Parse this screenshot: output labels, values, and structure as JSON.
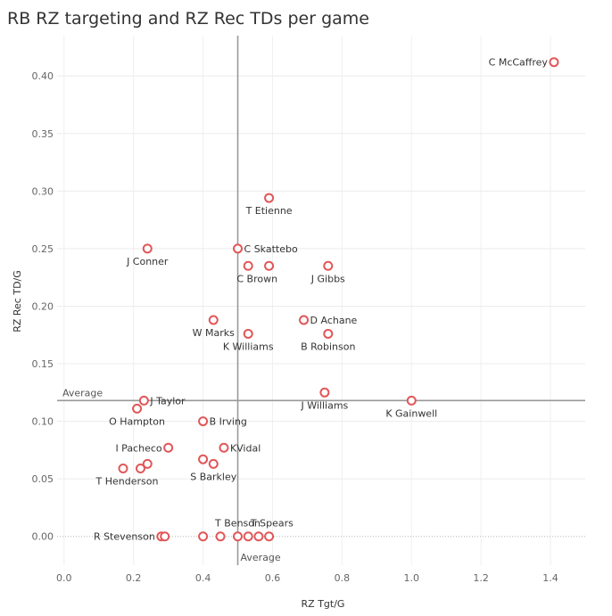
{
  "chart_data": {
    "type": "scatter",
    "title": "RB RZ targeting and  RZ Rec TDs per game",
    "xlabel": "RZ Tgt/G",
    "ylabel": "RZ Rec TD/G",
    "xlim": [
      -0.02,
      1.5
    ],
    "ylim": [
      -0.025,
      0.435
    ],
    "x_ticks": [
      "0.0",
      "0.2",
      "0.4",
      "0.6",
      "0.8",
      "1.0",
      "1.2",
      "1.4"
    ],
    "y_ticks": [
      "0.00",
      "0.05",
      "0.10",
      "0.15",
      "0.20",
      "0.25",
      "0.30",
      "0.35",
      "0.40"
    ],
    "grid": true,
    "reference_lines": {
      "x_average": 0.5,
      "y_average": 0.118,
      "x_label": "Average",
      "y_label": "Average"
    },
    "marker_color": "#e15759",
    "points": [
      {
        "label": "C McCaffrey",
        "x": 1.41,
        "y": 0.412
      },
      {
        "label": "T Etienne",
        "x": 0.59,
        "y": 0.294
      },
      {
        "label": "J Conner",
        "x": 0.24,
        "y": 0.25
      },
      {
        "label": "C Skattebo",
        "x": 0.5,
        "y": 0.25
      },
      {
        "label": "C Brown",
        "x": 0.53,
        "y": 0.235
      },
      {
        "label": "",
        "x": 0.59,
        "y": 0.235
      },
      {
        "label": "J Gibbs",
        "x": 0.76,
        "y": 0.235
      },
      {
        "label": "W Marks",
        "x": 0.43,
        "y": 0.188
      },
      {
        "label": "D Achane",
        "x": 0.69,
        "y": 0.188
      },
      {
        "label": "K Williams",
        "x": 0.53,
        "y": 0.176
      },
      {
        "label": "B Robinson",
        "x": 0.76,
        "y": 0.176
      },
      {
        "label": "J Williams",
        "x": 0.75,
        "y": 0.125
      },
      {
        "label": "K Gainwell",
        "x": 1.0,
        "y": 0.118
      },
      {
        "label": "J Taylor",
        "x": 0.23,
        "y": 0.118
      },
      {
        "label": "O Hampton",
        "x": 0.21,
        "y": 0.111
      },
      {
        "label": "B Irving",
        "x": 0.4,
        "y": 0.1
      },
      {
        "label": "I Pacheco",
        "x": 0.3,
        "y": 0.077
      },
      {
        "label": "KVidal",
        "x": 0.46,
        "y": 0.077
      },
      {
        "label": "",
        "x": 0.4,
        "y": 0.067
      },
      {
        "label": "S Barkley",
        "x": 0.43,
        "y": 0.063
      },
      {
        "label": "",
        "x": 0.24,
        "y": 0.063
      },
      {
        "label": "",
        "x": 0.17,
        "y": 0.059
      },
      {
        "label": "T Henderson",
        "x": 0.22,
        "y": 0.059
      },
      {
        "label": "R Stevenson",
        "x": 0.28,
        "y": 0.0
      },
      {
        "label": "",
        "x": 0.29,
        "y": 0.0
      },
      {
        "label": "",
        "x": 0.4,
        "y": 0.0
      },
      {
        "label": "",
        "x": 0.45,
        "y": 0.0
      },
      {
        "label": "T Benson",
        "x": 0.5,
        "y": 0.0
      },
      {
        "label": "",
        "x": 0.53,
        "y": 0.0
      },
      {
        "label": "T Spears",
        "x": 0.56,
        "y": 0.0
      },
      {
        "label": "",
        "x": 0.59,
        "y": 0.0
      }
    ]
  }
}
